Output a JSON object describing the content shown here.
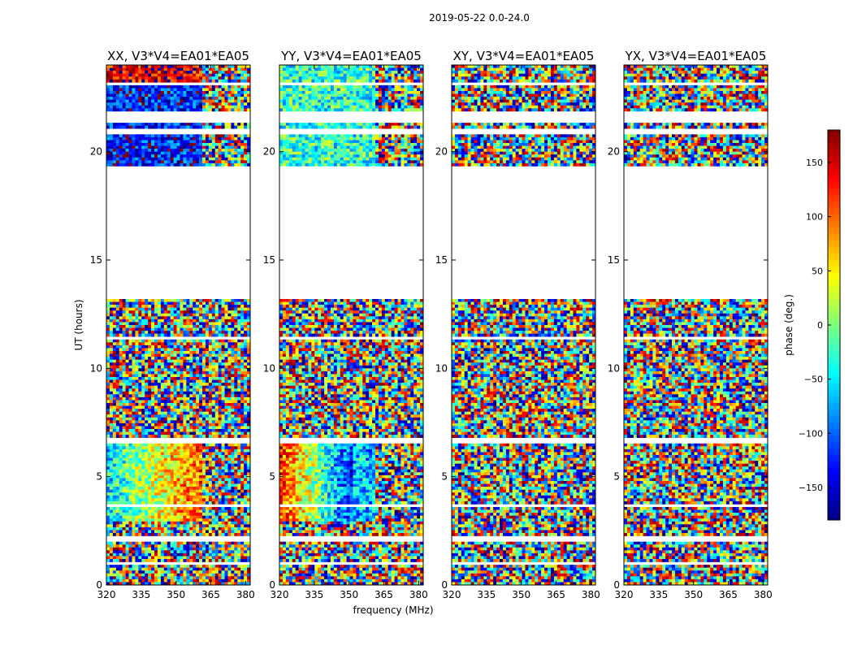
{
  "chart_data": {
    "type": "heatmap",
    "suptitle": "2019-05-22 0.0-24.0",
    "xlabel": "frequency (MHz)",
    "ylabel": "UT (hours)",
    "xlim": [
      320,
      382
    ],
    "ylim": [
      0,
      24
    ],
    "xticks": [
      320,
      335,
      350,
      365,
      380
    ],
    "yticks": [
      0,
      5,
      10,
      15,
      20
    ],
    "colorbar": {
      "label": "phase (deg.)",
      "range": [
        -180,
        180
      ],
      "ticks": [
        150,
        100,
        50,
        0,
        -50,
        -100,
        -150
      ],
      "tick_labels": [
        "150",
        "100",
        "50",
        "0",
        "−50",
        "−100",
        "−150"
      ],
      "colormap": "jet"
    },
    "panels": [
      {
        "title": "XX, V3*V4=EA01*EA05",
        "pol": "XX",
        "coherent": true
      },
      {
        "title": "YY, V3*V4=EA01*EA05",
        "pol": "YY",
        "coherent": true
      },
      {
        "title": "XY, V3*V4=EA01*EA05",
        "pol": "XY",
        "coherent": false
      },
      {
        "title": "YX, V3*V4=EA01*EA05",
        "pol": "YX",
        "coherent": false
      }
    ],
    "data_gap_hours": [
      [
        13.2,
        19.3
      ],
      [
        21.4,
        21.8
      ],
      [
        20.8,
        21.0
      ],
      [
        23.05,
        23.25
      ],
      [
        6.55,
        6.75
      ],
      [
        0.95,
        1.05
      ],
      [
        2.05,
        2.25
      ],
      [
        3.55,
        3.75
      ],
      [
        11.4,
        11.5
      ]
    ]
  }
}
